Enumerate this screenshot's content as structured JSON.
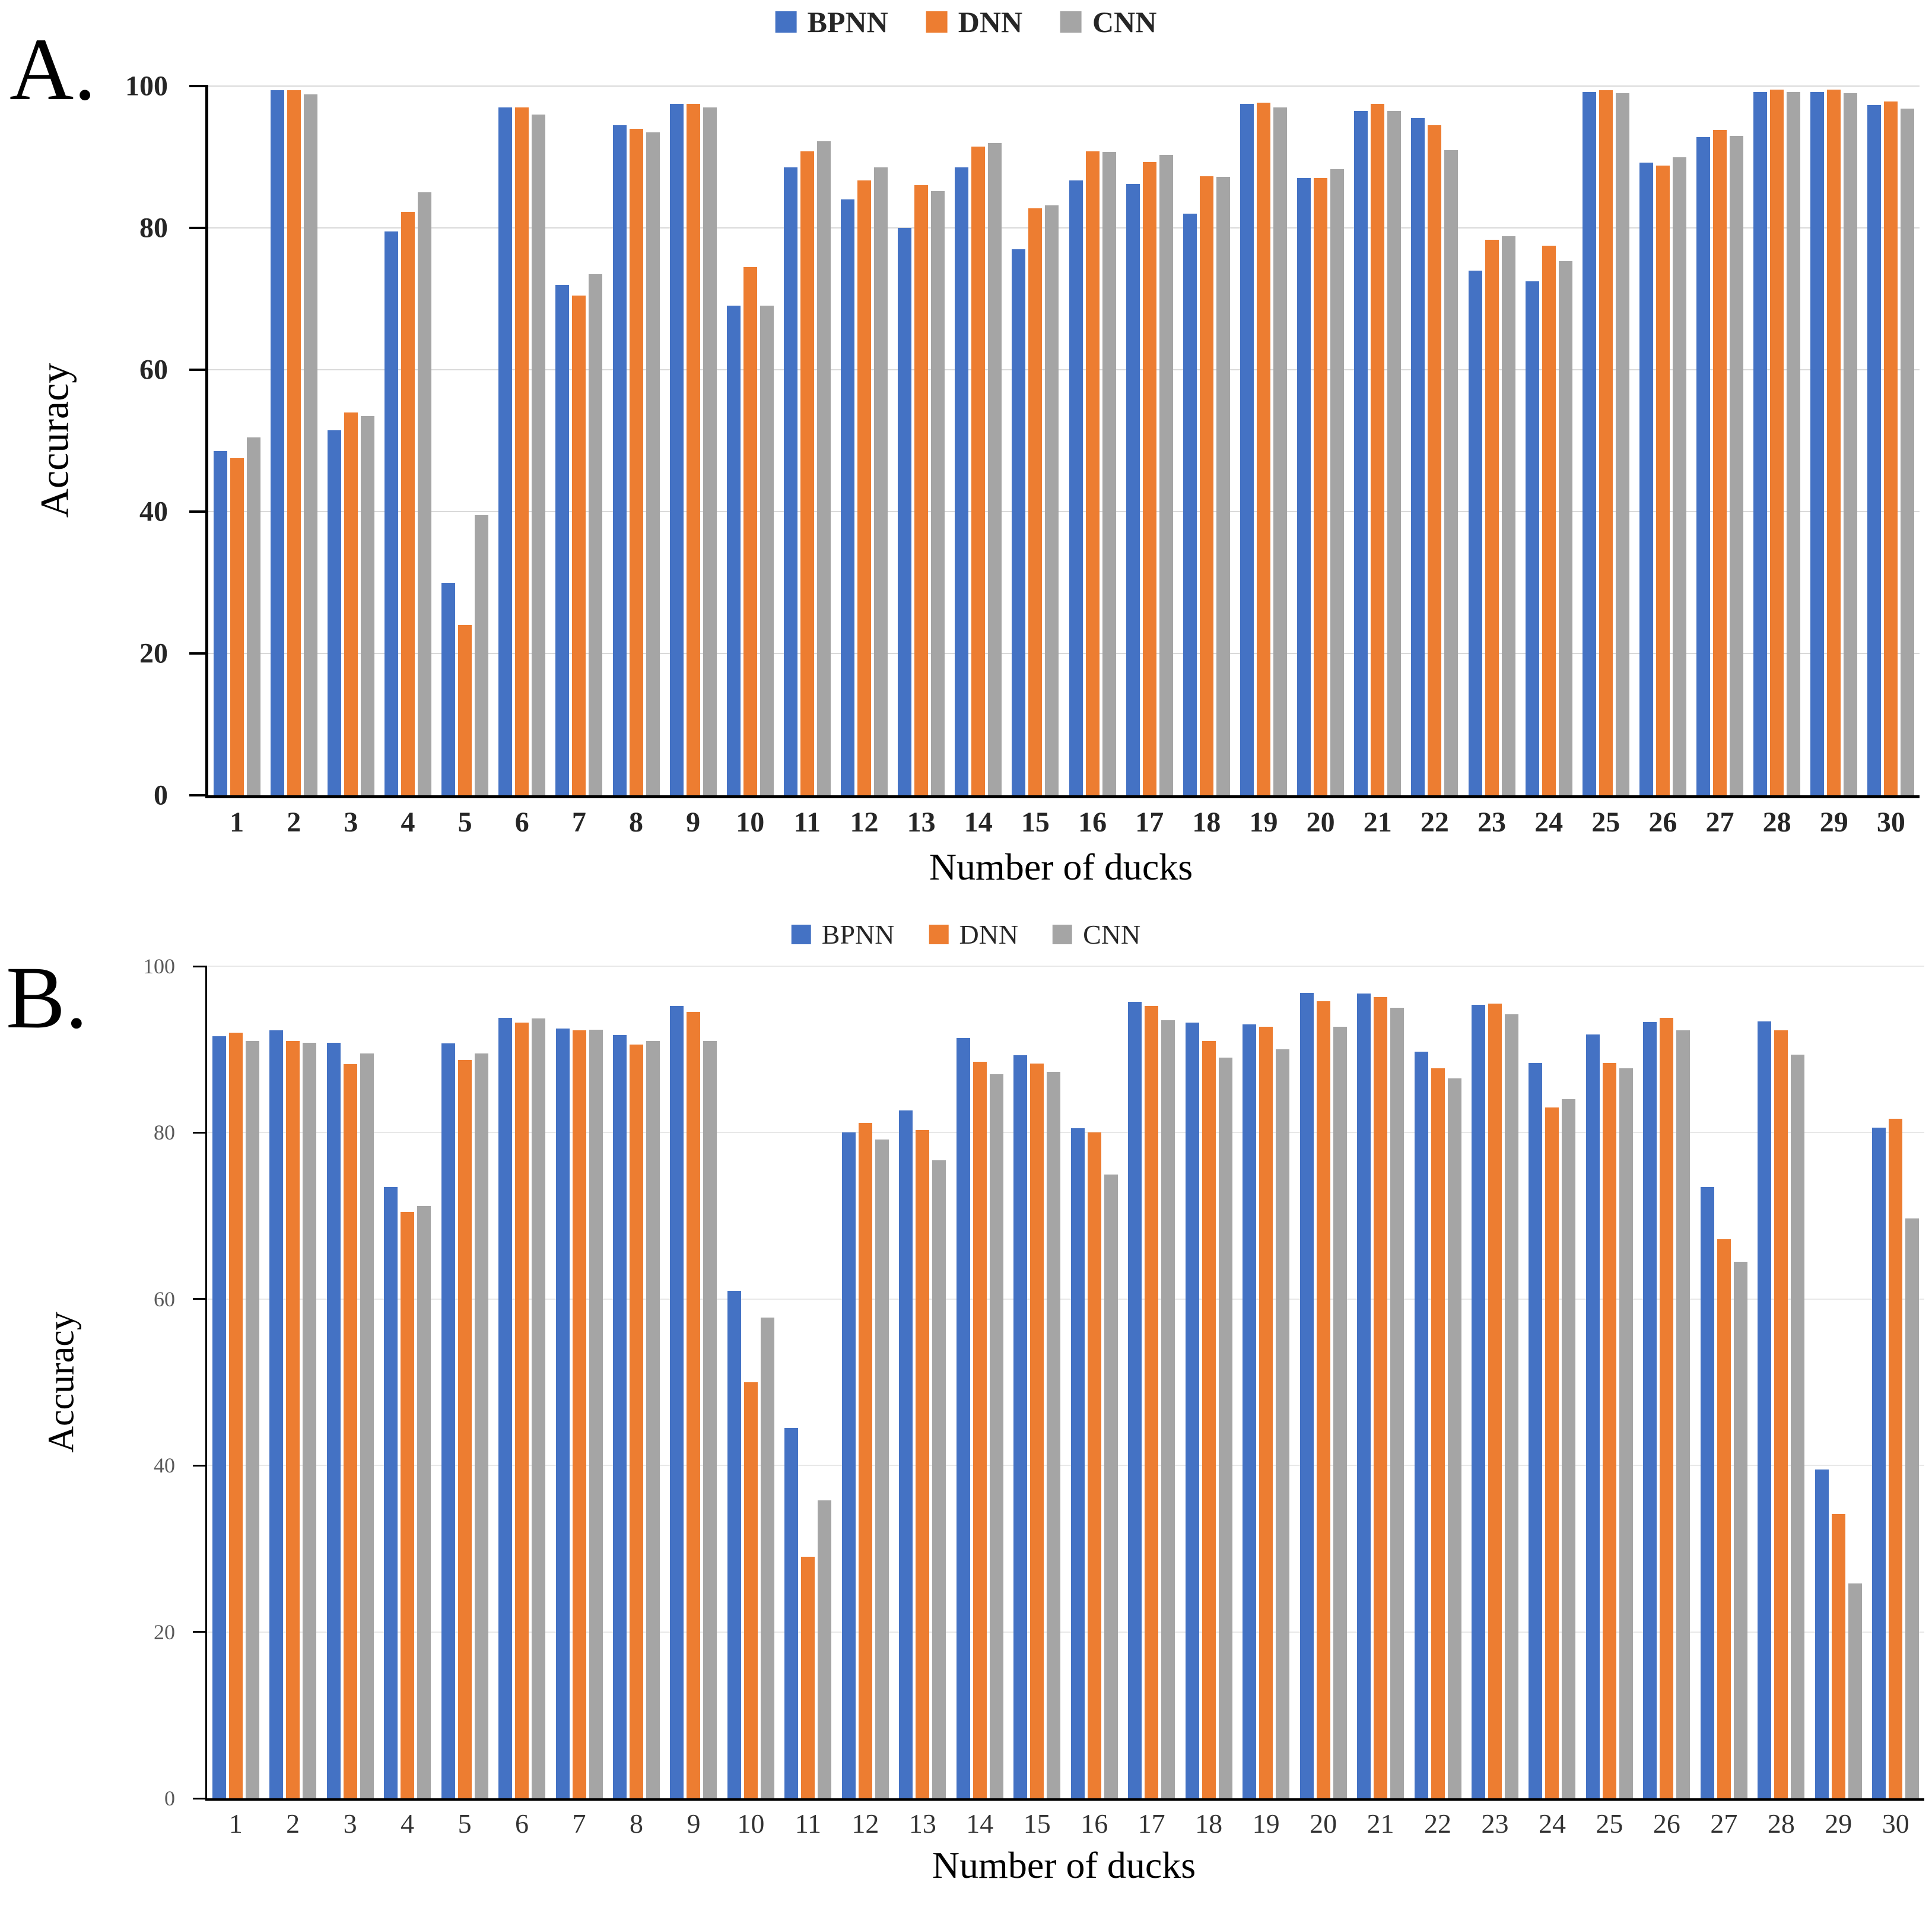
{
  "page": {
    "background": "#ffffff"
  },
  "panels": [
    {
      "letter": "A.",
      "legend_labels": [
        "BPNN",
        "DNN",
        "CNN"
      ]
    },
    {
      "letter": "B.",
      "legend_labels": [
        "BPNN",
        "DNN",
        "CNN"
      ]
    }
  ],
  "colors": {
    "bpnn": "#4472C4",
    "dnn": "#ED7D31",
    "cnn": "#A5A5A5",
    "axis": "#000000",
    "gridline_a": "#D9D9D9",
    "gridline_b": "#E8E8E8",
    "tick_label_a": "#262626",
    "tick_label_b": "#595959"
  },
  "chart_data": [
    {
      "type": "bar",
      "panel": "A",
      "xlabel": "Number of ducks",
      "ylabel": "Accuracy",
      "ylim": [
        0,
        100
      ],
      "yticks": [
        0,
        20,
        40,
        60,
        80,
        100
      ],
      "grid": true,
      "legend_position": "top-center",
      "categories": [
        "1",
        "2",
        "3",
        "4",
        "5",
        "6",
        "7",
        "8",
        "9",
        "10",
        "11",
        "12",
        "13",
        "14",
        "15",
        "16",
        "17",
        "18",
        "19",
        "20",
        "21",
        "22",
        "23",
        "24",
        "25",
        "26",
        "27",
        "28",
        "29",
        "30"
      ],
      "series": [
        {
          "name": "BPNN",
          "color": "#4472C4",
          "values": [
            48.5,
            99.4,
            51.5,
            79.5,
            30,
            97,
            72,
            94.5,
            97.5,
            69,
            88.5,
            84,
            80,
            88.5,
            77,
            86.7,
            86.2,
            82,
            97.5,
            87,
            96.5,
            95.5,
            74,
            72.5,
            99.2,
            89.2,
            92.8,
            99.2,
            99.2,
            97.3
          ]
        },
        {
          "name": "DNN",
          "color": "#ED7D31",
          "values": [
            47.5,
            99.4,
            54,
            82.3,
            24,
            97,
            70.5,
            94,
            97.5,
            74.5,
            90.8,
            86.7,
            86,
            91.5,
            82.8,
            90.8,
            89.3,
            87.3,
            97.7,
            87,
            97.5,
            94.5,
            78.3,
            77.5,
            99.4,
            88.8,
            93.8,
            99.5,
            99.5,
            97.8
          ]
        },
        {
          "name": "CNN",
          "color": "#A5A5A5",
          "values": [
            50.5,
            98.8,
            53.5,
            85,
            39.5,
            96,
            73.5,
            93.5,
            97,
            69,
            92.2,
            88.5,
            85.2,
            92,
            83.2,
            90.7,
            90.3,
            87.2,
            97,
            88.3,
            96.5,
            91,
            78.8,
            75.3,
            99,
            90,
            93,
            99.2,
            99,
            96.8
          ]
        }
      ]
    },
    {
      "type": "bar",
      "panel": "B",
      "xlabel": "Number of ducks",
      "ylabel": "Accuracy",
      "ylim": [
        0,
        100
      ],
      "yticks": [
        0,
        20,
        40,
        60,
        80,
        100
      ],
      "grid": true,
      "legend_position": "top-center",
      "categories": [
        "1",
        "2",
        "3",
        "4",
        "5",
        "6",
        "7",
        "8",
        "9",
        "10",
        "11",
        "12",
        "13",
        "14",
        "15",
        "16",
        "17",
        "18",
        "19",
        "20",
        "21",
        "22",
        "23",
        "24",
        "25",
        "26",
        "27",
        "28",
        "29",
        "30"
      ],
      "series": [
        {
          "name": "BPNN",
          "color": "#4472C4",
          "values": [
            91.6,
            92.3,
            90.8,
            73.5,
            90.7,
            93.8,
            92.5,
            91.7,
            95.2,
            61,
            44.5,
            80,
            82.7,
            91.4,
            89.3,
            80.5,
            95.7,
            93.2,
            93,
            96.8,
            96.7,
            89.7,
            95.4,
            88.4,
            91.8,
            93.3,
            73.5,
            93.4,
            39.5,
            80.6
          ]
        },
        {
          "name": "DNN",
          "color": "#ED7D31",
          "values": [
            92,
            91,
            88.2,
            70.5,
            88.7,
            93.2,
            92.3,
            90.6,
            94.5,
            50,
            29,
            81.2,
            80.3,
            88.5,
            88.3,
            80,
            95.2,
            91,
            92.7,
            95.8,
            96.3,
            87.7,
            95.5,
            83,
            88.4,
            93.8,
            67.2,
            92.3,
            34.2,
            81.7
          ]
        },
        {
          "name": "CNN",
          "color": "#A5A5A5",
          "values": [
            91,
            90.8,
            89.5,
            71.2,
            89.5,
            93.7,
            92.4,
            91,
            91,
            57.8,
            35.8,
            79.2,
            76.7,
            87,
            87.3,
            75,
            93.5,
            89,
            90,
            92.7,
            95,
            86.5,
            94.2,
            84,
            87.7,
            92.3,
            64.5,
            89.4,
            25.8,
            69.7
          ]
        }
      ]
    }
  ]
}
